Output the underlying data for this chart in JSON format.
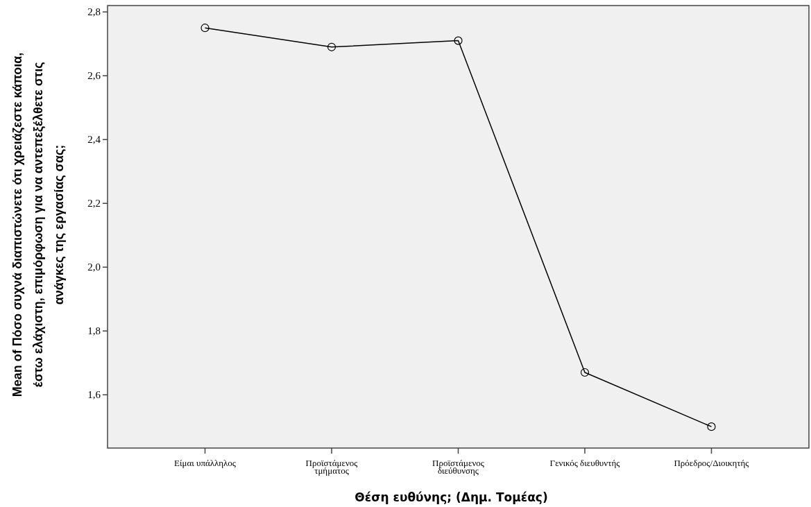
{
  "chart_data": {
    "type": "line",
    "xlabel": "Θέση ευθύνης; (Δημ. Τομέας)",
    "ylabel": "Mean of Πόσο συχνά διαπιστώνετε ότι χρειάζεστε κάποια,\nέστω ελάχιστη, επιμόρφωση για να αντεπεξέλθετε στις\nανάγκες της εργασίας σας;",
    "categories": [
      "Είμαι υπάλληλος",
      "Προϊστάμενος\nτμήματος",
      "Προϊστάμενος\nδιεύθυνσης",
      "Γενικός διευθυντής",
      "Πρόεδρος/Διοικητής"
    ],
    "series": [
      {
        "color": "#000000",
        "values": [
          2.75,
          2.69,
          2.71,
          1.67,
          1.5
        ]
      }
    ],
    "ylim": [
      1.433,
      2.82
    ],
    "yticks": [
      {
        "value": 1.6,
        "label": "1,6"
      },
      {
        "value": 1.8,
        "label": "1,8"
      },
      {
        "value": 2.0,
        "label": "2,0"
      },
      {
        "value": 2.2,
        "label": "2,2"
      },
      {
        "value": 2.4,
        "label": "2,4"
      },
      {
        "value": 2.6,
        "label": "2,6"
      },
      {
        "value": 2.8,
        "label": "2,8"
      }
    ],
    "marker": "circle",
    "grid": false
  }
}
